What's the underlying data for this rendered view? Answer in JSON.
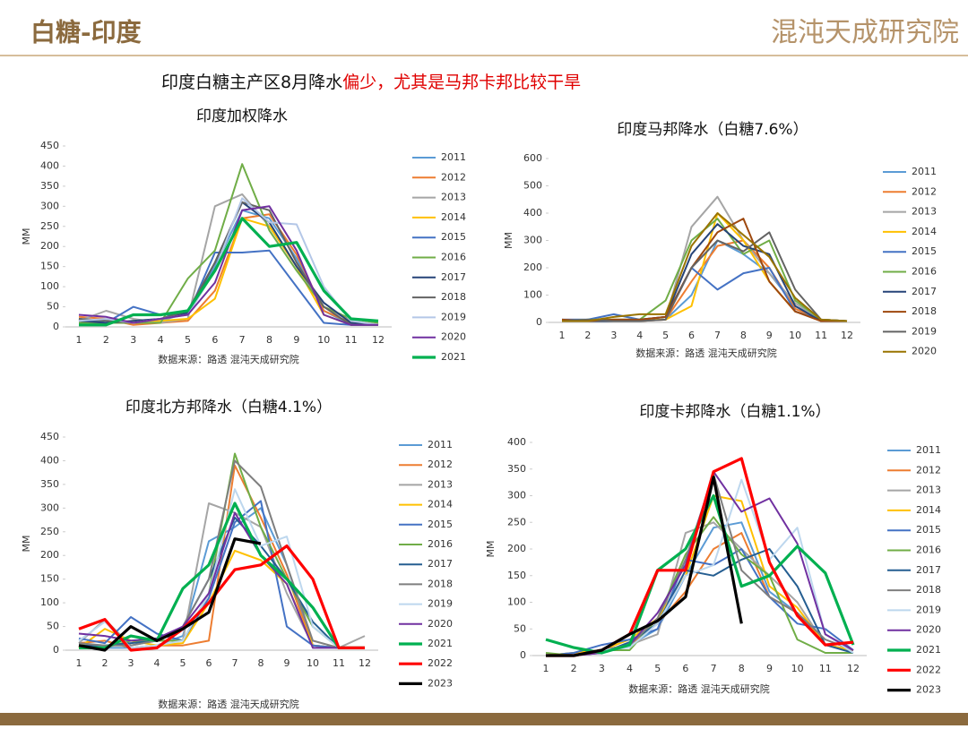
{
  "header": {
    "title": "白糖-印度",
    "logo": "混沌天成研究院"
  },
  "headline": {
    "part1": "印度白糖主产区8月降水",
    "part2": "偏少，尤其是马邦卡邦比较干旱"
  },
  "chart_data": [
    {
      "type": "line",
      "title": "印度加权降水",
      "y_label": "MM",
      "note": "数据来源：路透 混沌天成研究院",
      "categories": [
        1,
        2,
        3,
        4,
        5,
        6,
        7,
        8,
        9,
        10,
        11,
        12
      ],
      "ylim": [
        0,
        450
      ],
      "yticks": [
        0,
        50,
        100,
        150,
        200,
        250,
        300,
        350,
        400,
        450
      ],
      "series": [
        {
          "name": "2011",
          "color": "#5b9bd5",
          "values": [
            20,
            15,
            10,
            15,
            35,
            150,
            290,
            270,
            170,
            40,
            5,
            5
          ]
        },
        {
          "name": "2012",
          "color": "#ed7d31",
          "values": [
            25,
            20,
            5,
            10,
            15,
            90,
            270,
            280,
            180,
            40,
            10,
            5
          ]
        },
        {
          "name": "2013",
          "color": "#a5a5a5",
          "values": [
            15,
            40,
            20,
            10,
            20,
            300,
            330,
            250,
            150,
            50,
            15,
            5
          ]
        },
        {
          "name": "2014",
          "color": "#ffc000",
          "values": [
            10,
            10,
            15,
            15,
            20,
            70,
            270,
            250,
            150,
            30,
            5,
            5
          ]
        },
        {
          "name": "2015",
          "color": "#4472c4",
          "values": [
            20,
            10,
            50,
            30,
            30,
            185,
            185,
            190,
            100,
            10,
            5,
            5
          ]
        },
        {
          "name": "2016",
          "color": "#70ad47",
          "values": [
            10,
            10,
            10,
            10,
            120,
            190,
            405,
            240,
            140,
            50,
            20,
            10
          ]
        },
        {
          "name": "2017",
          "color": "#264478",
          "values": [
            15,
            10,
            15,
            20,
            35,
            160,
            310,
            260,
            150,
            60,
            10,
            5
          ]
        },
        {
          "name": "2018",
          "color": "#636363",
          "values": [
            20,
            15,
            10,
            20,
            40,
            160,
            310,
            290,
            160,
            50,
            5,
            5
          ]
        },
        {
          "name": "2019",
          "color": "#b4c7e7",
          "values": [
            15,
            20,
            10,
            20,
            30,
            140,
            320,
            260,
            255,
            100,
            15,
            5
          ]
        },
        {
          "name": "2020",
          "color": "#7030a0",
          "values": [
            30,
            25,
            10,
            20,
            30,
            110,
            290,
            300,
            190,
            30,
            5,
            5
          ]
        },
        {
          "name": "2021",
          "color": "#00b050",
          "values": [
            5,
            5,
            30,
            30,
            40,
            140,
            270,
            200,
            210,
            90,
            20,
            15
          ]
        }
      ]
    },
    {
      "type": "line",
      "title": "印度马邦降水（白糖7.6%）",
      "y_label": "MM",
      "note": "数据来源：路透 混沌天成研究院",
      "categories": [
        1,
        2,
        3,
        4,
        5,
        6,
        7,
        8,
        9,
        10,
        11,
        12
      ],
      "ylim": [
        0,
        600
      ],
      "yticks": [
        0,
        100,
        200,
        300,
        400,
        500,
        600
      ],
      "series": [
        {
          "name": "2011",
          "color": "#5b9bd5",
          "values": [
            5,
            5,
            10,
            10,
            10,
            100,
            300,
            250,
            180,
            60,
            10,
            5
          ]
        },
        {
          "name": "2012",
          "color": "#ed7d31",
          "values": [
            5,
            5,
            10,
            5,
            10,
            150,
            280,
            300,
            200,
            50,
            10,
            5
          ]
        },
        {
          "name": "2013",
          "color": "#a5a5a5",
          "values": [
            10,
            10,
            5,
            5,
            10,
            350,
            460,
            300,
            180,
            70,
            10,
            5
          ]
        },
        {
          "name": "2014",
          "color": "#ffc000",
          "values": [
            5,
            5,
            10,
            10,
            10,
            60,
            400,
            300,
            150,
            40,
            10,
            5
          ]
        },
        {
          "name": "2015",
          "color": "#4472c4",
          "values": [
            10,
            10,
            30,
            10,
            20,
            200,
            120,
            180,
            200,
            40,
            10,
            5
          ]
        },
        {
          "name": "2016",
          "color": "#70ad47",
          "values": [
            5,
            10,
            10,
            10,
            80,
            300,
            380,
            250,
            300,
            80,
            10,
            5
          ]
        },
        {
          "name": "2017",
          "color": "#264478",
          "values": [
            5,
            5,
            5,
            10,
            20,
            250,
            360,
            280,
            250,
            60,
            5,
            5
          ]
        },
        {
          "name": "2018",
          "color": "#9e480e",
          "values": [
            10,
            5,
            10,
            10,
            20,
            200,
            330,
            380,
            150,
            40,
            5,
            5
          ]
        },
        {
          "name": "2019",
          "color": "#636363",
          "values": [
            5,
            10,
            5,
            5,
            10,
            200,
            300,
            260,
            330,
            120,
            10,
            5
          ]
        },
        {
          "name": "2020",
          "color": "#997300",
          "values": [
            5,
            5,
            20,
            30,
            30,
            280,
            400,
            320,
            240,
            90,
            10,
            5
          ]
        }
      ]
    },
    {
      "type": "line",
      "title": "印度北方邦降水（白糖4.1%）",
      "y_label": "MM",
      "note": "数据来源：路透 混沌天成研究院",
      "categories": [
        1,
        2,
        3,
        4,
        5,
        6,
        7,
        8,
        9,
        10,
        11,
        12
      ],
      "ylim": [
        0,
        450
      ],
      "yticks": [
        0,
        50,
        100,
        150,
        200,
        250,
        300,
        350,
        400,
        450
      ],
      "series": [
        {
          "name": "2011",
          "color": "#5b9bd5",
          "values": [
            10,
            5,
            5,
            10,
            30,
            230,
            260,
            300,
            180,
            10,
            5,
            5
          ]
        },
        {
          "name": "2012",
          "color": "#ed7d31",
          "values": [
            15,
            20,
            5,
            10,
            10,
            20,
            390,
            280,
            160,
            10,
            5,
            5
          ]
        },
        {
          "name": "2013",
          "color": "#a5a5a5",
          "values": [
            15,
            65,
            10,
            20,
            20,
            310,
            290,
            260,
            120,
            10,
            5,
            30
          ]
        },
        {
          "name": "2014",
          "color": "#ffc000",
          "values": [
            5,
            45,
            20,
            10,
            15,
            100,
            210,
            190,
            140,
            10,
            5,
            5
          ]
        },
        {
          "name": "2015",
          "color": "#4472c4",
          "values": [
            25,
            15,
            70,
            35,
            20,
            110,
            270,
            315,
            50,
            10,
            5,
            5
          ]
        },
        {
          "name": "2016",
          "color": "#70ad47",
          "values": [
            5,
            5,
            20,
            20,
            20,
            120,
            415,
            260,
            150,
            50,
            5,
            5
          ]
        },
        {
          "name": "2017",
          "color": "#255e91",
          "values": [
            10,
            10,
            15,
            20,
            50,
            150,
            280,
            220,
            150,
            60,
            5,
            5
          ]
        },
        {
          "name": "2018",
          "color": "#7f7f7f",
          "values": [
            15,
            10,
            10,
            20,
            50,
            150,
            400,
            345,
            180,
            20,
            5,
            5
          ]
        },
        {
          "name": "2019",
          "color": "#bdd7ee",
          "values": [
            20,
            60,
            5,
            10,
            20,
            120,
            340,
            220,
            240,
            50,
            5,
            5
          ]
        },
        {
          "name": "2020",
          "color": "#7030a0",
          "values": [
            35,
            30,
            20,
            25,
            50,
            120,
            290,
            200,
            140,
            5,
            5,
            5
          ]
        },
        {
          "name": "2021",
          "color": "#00b050",
          "values": [
            5,
            5,
            30,
            20,
            130,
            180,
            310,
            200,
            150,
            90,
            5,
            5
          ]
        },
        {
          "name": "2022",
          "color": "#ff0000",
          "values": [
            45,
            65,
            0,
            5,
            45,
            100,
            170,
            180,
            220,
            150,
            5,
            5
          ]
        },
        {
          "name": "2023",
          "color": "#000000",
          "values": [
            10,
            0,
            50,
            20,
            45,
            80,
            235,
            225,
            null,
            null,
            null,
            null
          ]
        }
      ]
    },
    {
      "type": "line",
      "title": "印度卡邦降水（白糖1.1%）",
      "y_label": "MM",
      "note": "数据来源：路透 混沌天成研究院",
      "categories": [
        1,
        2,
        3,
        4,
        5,
        6,
        7,
        8,
        9,
        10,
        11,
        12
      ],
      "ylim": [
        0,
        400
      ],
      "yticks": [
        0,
        50,
        100,
        150,
        200,
        250,
        300,
        350,
        400
      ],
      "series": [
        {
          "name": "2011",
          "color": "#5b9bd5",
          "values": [
            0,
            5,
            10,
            20,
            50,
            150,
            240,
            250,
            120,
            80,
            20,
            10
          ]
        },
        {
          "name": "2012",
          "color": "#ed7d31",
          "values": [
            0,
            0,
            10,
            20,
            60,
            120,
            200,
            230,
            110,
            80,
            20,
            10
          ]
        },
        {
          "name": "2013",
          "color": "#a5a5a5",
          "values": [
            0,
            0,
            10,
            20,
            40,
            230,
            250,
            200,
            150,
            100,
            20,
            10
          ]
        },
        {
          "name": "2014",
          "color": "#ffc000",
          "values": [
            0,
            5,
            10,
            30,
            70,
            150,
            300,
            290,
            130,
            90,
            20,
            10
          ]
        },
        {
          "name": "2015",
          "color": "#4472c4",
          "values": [
            0,
            5,
            20,
            30,
            50,
            180,
            170,
            200,
            110,
            60,
            50,
            10
          ]
        },
        {
          "name": "2016",
          "color": "#70ad47",
          "values": [
            5,
            0,
            10,
            10,
            70,
            190,
            260,
            190,
            150,
            30,
            5,
            5
          ]
        },
        {
          "name": "2017",
          "color": "#255e91",
          "values": [
            0,
            0,
            5,
            25,
            60,
            160,
            150,
            180,
            200,
            130,
            20,
            5
          ]
        },
        {
          "name": "2018",
          "color": "#7f7f7f",
          "values": [
            0,
            0,
            10,
            20,
            70,
            180,
            340,
            160,
            110,
            80,
            30,
            10
          ]
        },
        {
          "name": "2019",
          "color": "#bdd7ee",
          "values": [
            0,
            0,
            10,
            15,
            60,
            150,
            170,
            330,
            180,
            240,
            40,
            5
          ]
        },
        {
          "name": "2020",
          "color": "#7030a0",
          "values": [
            0,
            0,
            5,
            20,
            80,
            170,
            345,
            270,
            295,
            210,
            40,
            10
          ]
        },
        {
          "name": "2021",
          "color": "#00b050",
          "values": [
            30,
            15,
            5,
            20,
            160,
            200,
            300,
            130,
            150,
            205,
            155,
            20
          ]
        },
        {
          "name": "2022",
          "color": "#ff0000",
          "values": [
            0,
            0,
            10,
            40,
            160,
            160,
            345,
            370,
            175,
            75,
            20,
            25
          ]
        },
        {
          "name": "2023",
          "color": "#000000",
          "values": [
            0,
            0,
            10,
            40,
            65,
            110,
            335,
            60,
            null,
            null,
            null,
            null
          ]
        }
      ]
    }
  ]
}
